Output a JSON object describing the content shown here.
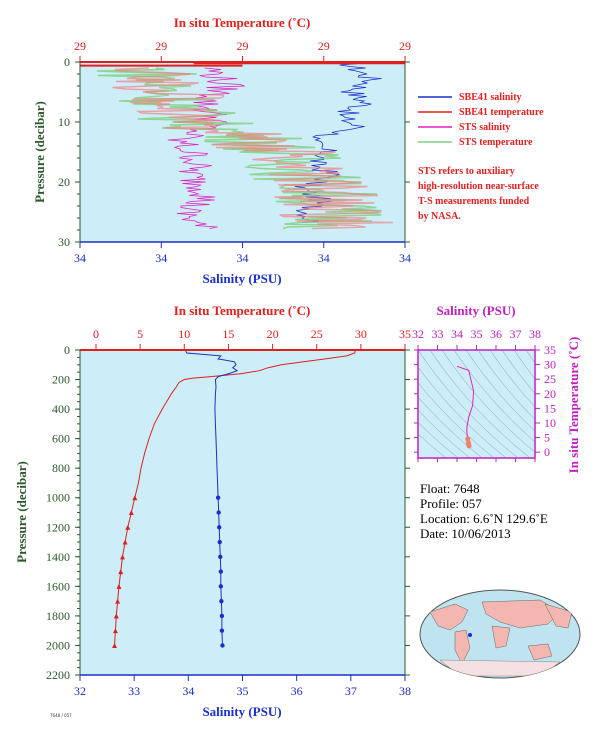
{
  "colors": {
    "plot_bg": "#cdeef8",
    "temperature": "#e0201e",
    "salinity": "#1a30c8",
    "sts_salinity": "#e020c0",
    "sts_temperature": "#80d080",
    "sts_temp_alt": "#f08080",
    "pressure_axis": "#2d5a2d",
    "ts_axis": "#c020c0"
  },
  "top_panel": {
    "temp_axis_title": "In situ Temperature (˚C)",
    "temp_ticks": [
      "29",
      "29",
      "29",
      "29",
      "29"
    ],
    "sal_axis_title": "Salinity (PSU)",
    "sal_ticks": [
      "34",
      "34",
      "34",
      "34",
      "34"
    ],
    "pressure_axis_title": "Pressure (decibar)",
    "pressure_ticks": [
      "0",
      "10",
      "20",
      "30"
    ],
    "legend": [
      {
        "label": "SBE41 salinity",
        "color": "#1a30c8"
      },
      {
        "label": "SBE41 temperature",
        "color": "#e0201e"
      },
      {
        "label": "STS salinity",
        "color": "#e020c0"
      },
      {
        "label": "STS temperature",
        "color": "#80d080"
      }
    ],
    "note": [
      "STS refers to auxiliary",
      "high-resolution near-surface",
      "T-S measurements funded",
      "by NASA."
    ]
  },
  "bottom_panel": {
    "temp_axis_title": "In situ Temperature (˚C)",
    "temp_ticks": [
      "0",
      "5",
      "10",
      "15",
      "20",
      "25",
      "30",
      "35"
    ],
    "sal_axis_title": "Salinity (PSU)",
    "sal_ticks": [
      "32",
      "33",
      "34",
      "35",
      "36",
      "37",
      "38"
    ],
    "pressure_axis_title": "Pressure (decibar)",
    "pressure_ticks": [
      "0",
      "200",
      "400",
      "600",
      "800",
      "1000",
      "1200",
      "1400",
      "1600",
      "1800",
      "2000",
      "2200"
    ]
  },
  "ts_inset": {
    "sal_axis_title": "Salinity (PSU)",
    "sal_ticks": [
      "32",
      "33",
      "34",
      "35",
      "36",
      "37",
      "38"
    ],
    "temp_axis_title": "In situ Temperature (˚C)",
    "temp_ticks": [
      "0",
      "5",
      "10",
      "15",
      "20",
      "25",
      "30",
      "35"
    ]
  },
  "info": {
    "float": "Float:  7648",
    "profile": "Profile:  057",
    "location": "Location:  6.6˚N  129.6˚E",
    "date": "Date:  10/06/2013"
  },
  "chart_data": [
    {
      "type": "line",
      "title": "",
      "xlabel": "In situ Temperature (˚C) / Salinity (PSU)",
      "ylabel": "Pressure (decibar)",
      "ylim": [
        30,
        0
      ],
      "series": [
        {
          "name": "SBE41 salinity",
          "pressure": [
            0,
            3,
            5,
            7,
            9,
            11,
            13,
            15,
            17,
            19,
            21,
            23,
            25,
            27
          ],
          "fraction_of_axis": [
            0.82,
            0.9,
            0.84,
            0.88,
            0.8,
            0.86,
            0.7,
            0.76,
            0.72,
            0.78,
            0.68,
            0.74,
            0.7,
            0.72
          ]
        },
        {
          "name": "SBE41 temperature",
          "pressure": [
            0,
            0.5,
            1
          ],
          "fraction_of_axis": [
            0.45,
            1.0,
            0.0
          ]
        },
        {
          "name": "STS salinity",
          "pressure": [
            1,
            4,
            7,
            10,
            13,
            16,
            19,
            22,
            25,
            28
          ],
          "fraction_of_axis": [
            0.4,
            0.45,
            0.38,
            0.42,
            0.3,
            0.36,
            0.34,
            0.4,
            0.32,
            0.38
          ]
        },
        {
          "name": "STS temperature",
          "pressure": [
            1,
            4,
            7,
            10,
            13,
            16,
            19,
            22,
            25,
            28
          ],
          "fraction_of_axis": [
            0.2,
            0.25,
            0.3,
            0.35,
            0.55,
            0.65,
            0.7,
            0.75,
            0.78,
            0.8
          ]
        }
      ]
    },
    {
      "type": "line",
      "title": "",
      "xlabel": "Salinity (PSU)",
      "ylabel": "Pressure (decibar)",
      "ylim": [
        2200,
        0
      ],
      "series": [
        {
          "name": "Temperature",
          "axis": "temperature",
          "pressure": [
            0,
            20,
            40,
            60,
            80,
            100,
            120,
            140,
            160,
            180,
            190,
            200,
            220,
            250,
            300,
            350,
            400,
            500,
            600,
            700,
            800,
            900,
            1000,
            1100,
            1200,
            1300,
            1400,
            1500,
            1600,
            1700,
            1800,
            1900,
            2000
          ],
          "values": [
            29.4,
            29.3,
            28.4,
            26.0,
            23.5,
            21.0,
            19.5,
            18.5,
            16.5,
            13.0,
            11.0,
            10.0,
            9.4,
            9.1,
            8.5,
            8.0,
            7.5,
            6.6,
            6.0,
            5.5,
            5.1,
            4.8,
            4.4,
            4.0,
            3.6,
            3.3,
            3.0,
            2.8,
            2.6,
            2.45,
            2.3,
            2.2,
            2.1
          ]
        },
        {
          "name": "Salinity",
          "axis": "salinity",
          "pressure": [
            0,
            20,
            40,
            60,
            80,
            100,
            120,
            140,
            160,
            180,
            200,
            250,
            300,
            400,
            500,
            600,
            700,
            800,
            900,
            1000,
            1100,
            1200,
            1300,
            1400,
            1500,
            1600,
            1700,
            1800,
            1900,
            2000
          ],
          "values": [
            33.95,
            33.97,
            34.6,
            34.55,
            34.85,
            34.88,
            34.82,
            34.9,
            34.75,
            34.55,
            34.5,
            34.51,
            34.5,
            34.49,
            34.5,
            34.51,
            34.52,
            34.53,
            34.54,
            34.55,
            34.56,
            34.57,
            34.58,
            34.59,
            34.6,
            34.6,
            34.61,
            34.62,
            34.62,
            34.63
          ]
        }
      ]
    },
    {
      "type": "scatter",
      "title": "",
      "xlabel": "Salinity (PSU)",
      "ylabel": "In situ Temperature (˚C)",
      "xlim": [
        32,
        38
      ],
      "ylim": [
        -2,
        35
      ],
      "series": [
        {
          "name": "T-S",
          "salinity": [
            34.0,
            34.6,
            34.85,
            34.8,
            34.6,
            34.52,
            34.5,
            34.52,
            34.55,
            34.58,
            34.6,
            34.62
          ],
          "temperature": [
            29.4,
            28.0,
            21.0,
            16.0,
            12.0,
            9.0,
            7.5,
            6.0,
            4.5,
            3.3,
            2.6,
            2.1
          ]
        }
      ]
    }
  ]
}
